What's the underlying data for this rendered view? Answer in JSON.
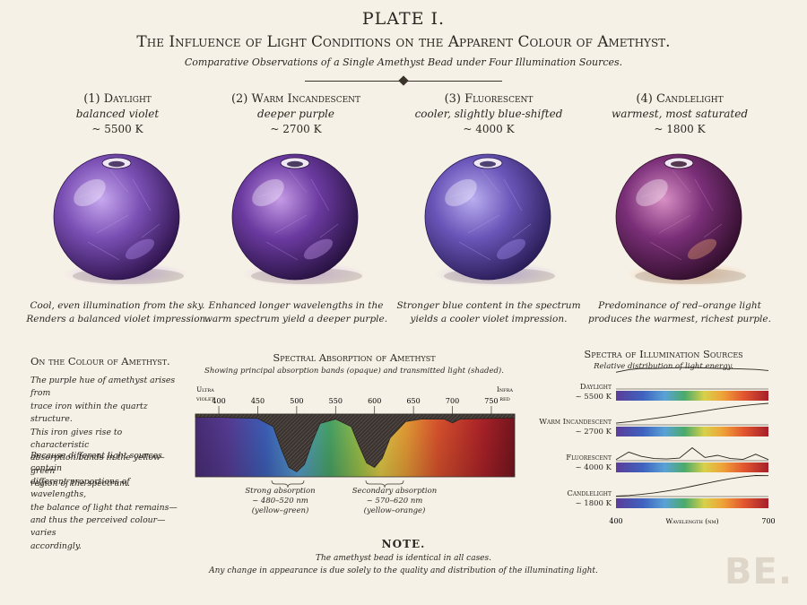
{
  "header": {
    "plate": "PLATE I.",
    "title": "The Influence of Light Conditions on the Apparent Colour of Amethyst.",
    "subtitle": "Comparative Observations of a Single Amethyst Bead under Four Illumination Sources."
  },
  "panels": [
    {
      "title": "(1) Daylight",
      "desc": "balanced violet",
      "temp": "~ 5500 K",
      "caption": [
        "Cool, even illumination from the sky.",
        "Renders a balanced violet impression."
      ],
      "colors": {
        "light": "#c7a8ef",
        "mid": "#7a4fb4",
        "dark": "#2b1148",
        "glow": "#b58cf2"
      }
    },
    {
      "title": "(2) Warm Incandescent",
      "desc": "deeper purple",
      "temp": "~ 2700 K",
      "caption": [
        "Enhanced longer wavelengths in the",
        "warm spectrum yield a deeper purple."
      ],
      "colors": {
        "light": "#c59be6",
        "mid": "#6b3aa0",
        "dark": "#24103c",
        "glow": "#c69af0"
      }
    },
    {
      "title": "(3) Fluorescent",
      "desc": "cooler, slightly blue-shifted",
      "temp": "~ 4000 K",
      "caption": [
        "Stronger blue content in the spectrum",
        "yields a cooler violet impression."
      ],
      "colors": {
        "light": "#b9aef0",
        "mid": "#6a55b8",
        "dark": "#261a52",
        "glow": "#a58ef6"
      }
    },
    {
      "title": "(4) Candlelight",
      "desc": "warmest, most saturated",
      "temp": "~ 1800 K",
      "caption": [
        "Predominance of red–orange light",
        "produces the warmest, richest purple."
      ],
      "colors": {
        "light": "#d88fc4",
        "mid": "#7a2f78",
        "dark": "#2e0d28",
        "glow": "#e8a070"
      }
    }
  ],
  "sidebar": {
    "heading": "On the Colour of Amethyst.",
    "paragraph1": [
      "The purple hue of amethyst arises from",
      "trace iron within the quartz structure.",
      "This iron gives rise to characteristic",
      "absorption bands in the yellow–green",
      "region of the spectrum."
    ],
    "paragraph2": [
      "Because different light sources contain",
      "different proportions of wavelengths,",
      "the balance of light that remains—",
      "and thus the perceived colour—varies",
      "accordingly."
    ]
  },
  "absorption": {
    "title": "Spectral Absorption of Amethyst",
    "subtitle": "Showing principal absorption bands (opaque) and transmitted light (shaded).",
    "uv_label": [
      "Ultra",
      "violet"
    ],
    "ir_label": [
      "Infra",
      "red"
    ],
    "ticks": [
      "400",
      "450",
      "500",
      "550",
      "600",
      "650",
      "700",
      "750"
    ],
    "strong": [
      "Strong absorption",
      "~ 480–520 nm",
      "(yellow–green)"
    ],
    "secondary": [
      "Secondary absorption",
      "~ 570–620 nm",
      "(yellow–orange)"
    ]
  },
  "chart_data": [
    {
      "type": "area",
      "title": "Spectral Absorption of Amethyst",
      "xlabel": "",
      "ylabel": "",
      "xlim": [
        370,
        780
      ],
      "x": [
        370,
        400,
        450,
        470,
        480,
        490,
        500,
        510,
        520,
        530,
        550,
        570,
        580,
        590,
        600,
        610,
        620,
        640,
        660,
        690,
        700,
        710,
        780
      ],
      "series": [
        {
          "values": [
            0.05,
            0.05,
            0.07,
            0.2,
            0.55,
            0.85,
            0.92,
            0.8,
            0.45,
            0.15,
            0.08,
            0.2,
            0.5,
            0.78,
            0.85,
            0.7,
            0.38,
            0.12,
            0.08,
            0.08,
            0.14,
            0.08,
            0.06
          ]
        }
      ]
    },
    {
      "type": "line",
      "title": "Spectra of Illumination Sources",
      "subtitle": "Relative distribution of light energy.",
      "xlabel": "Wavelength (nm)",
      "xlim": [
        400,
        700
      ],
      "x": [
        400,
        425,
        450,
        475,
        500,
        525,
        550,
        575,
        600,
        625,
        650,
        675,
        700
      ],
      "series": [
        {
          "name": "Daylight ~ 5500 K",
          "values": [
            0.78,
            0.9,
            0.96,
            0.95,
            0.97,
            0.99,
            1.0,
            0.98,
            0.96,
            0.95,
            0.93,
            0.91,
            0.86
          ]
        },
        {
          "name": "Warm Incandescent ~ 2700 K",
          "values": [
            0.08,
            0.14,
            0.22,
            0.3,
            0.38,
            0.47,
            0.56,
            0.65,
            0.74,
            0.82,
            0.89,
            0.95,
            1.0
          ]
        },
        {
          "name": "Fluorescent ~ 4000 K",
          "values": [
            0.05,
            0.4,
            0.2,
            0.1,
            0.08,
            0.12,
            0.6,
            0.15,
            0.25,
            0.1,
            0.06,
            0.3,
            0.05
          ]
        },
        {
          "name": "Candlelight ~ 1800 K",
          "values": [
            0.02,
            0.05,
            0.1,
            0.17,
            0.26,
            0.36,
            0.48,
            0.6,
            0.72,
            0.83,
            0.92,
            0.98,
            0.97
          ]
        }
      ]
    }
  ],
  "illumination": {
    "title": "Spectra of Illumination Sources",
    "subtitle": "Relative distribution of light energy.",
    "sources": [
      [
        "Daylight",
        "~ 5500 K"
      ],
      [
        "Warm Incandescent",
        "~ 2700 K"
      ],
      [
        "Fluorescent",
        "~ 4000 K"
      ],
      [
        "Candlelight",
        "~ 1800 K"
      ]
    ],
    "axis_min": "400",
    "axis_max": "700",
    "axis_label": "Wavelength (nm)"
  },
  "note": {
    "heading": "NOTE.",
    "line1": "The amethyst bead is identical in all cases.",
    "line2": "Any change in appearance is due solely to the quality and distribution of the illuminating light."
  },
  "watermark": "BE."
}
